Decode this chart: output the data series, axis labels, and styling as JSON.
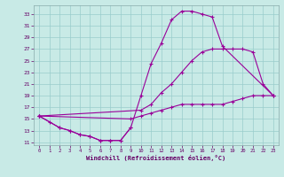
{
  "xlabel": "Windchill (Refroidissement éolien,°C)",
  "background_color": "#c8eae6",
  "line_color": "#990099",
  "grid_color": "#99cccc",
  "xlim": [
    -0.5,
    23.5
  ],
  "ylim": [
    10.5,
    34.5
  ],
  "yticks": [
    11,
    13,
    15,
    17,
    19,
    21,
    23,
    25,
    27,
    29,
    31,
    33
  ],
  "xticks": [
    0,
    1,
    2,
    3,
    4,
    5,
    6,
    7,
    8,
    9,
    10,
    11,
    12,
    13,
    14,
    15,
    16,
    17,
    18,
    19,
    20,
    21,
    22,
    23
  ],
  "line1_x": [
    0,
    1,
    2,
    3,
    4,
    5,
    6,
    7,
    8,
    9,
    10,
    11,
    12,
    13,
    14,
    15,
    16,
    17,
    18,
    23
  ],
  "line1_y": [
    15.5,
    14.5,
    13.5,
    13.0,
    12.3,
    12.0,
    11.3,
    11.3,
    11.3,
    13.5,
    19.0,
    24.5,
    28.0,
    32.0,
    33.5,
    33.5,
    33.0,
    32.5,
    27.5,
    19.0
  ],
  "line2_x": [
    0,
    10,
    11,
    12,
    13,
    14,
    15,
    16,
    17,
    18,
    19,
    20,
    21,
    22,
    23
  ],
  "line2_y": [
    15.5,
    16.5,
    17.5,
    19.5,
    21.0,
    23.0,
    25.0,
    26.5,
    27.0,
    27.0,
    27.0,
    27.0,
    26.5,
    21.0,
    19.0
  ],
  "line3_x": [
    0,
    9,
    10,
    11,
    12,
    13,
    14,
    15,
    16,
    17,
    18,
    19,
    20,
    21,
    22,
    23
  ],
  "line3_y": [
    15.5,
    15.0,
    15.5,
    16.0,
    16.5,
    17.0,
    17.5,
    17.5,
    17.5,
    17.5,
    17.5,
    18.0,
    18.5,
    19.0,
    19.0,
    19.0
  ],
  "line4_x": [
    0,
    2,
    3,
    4,
    5,
    6,
    7,
    8,
    9
  ],
  "line4_y": [
    15.5,
    13.5,
    13.0,
    12.3,
    12.0,
    11.3,
    11.3,
    11.3,
    13.5
  ]
}
